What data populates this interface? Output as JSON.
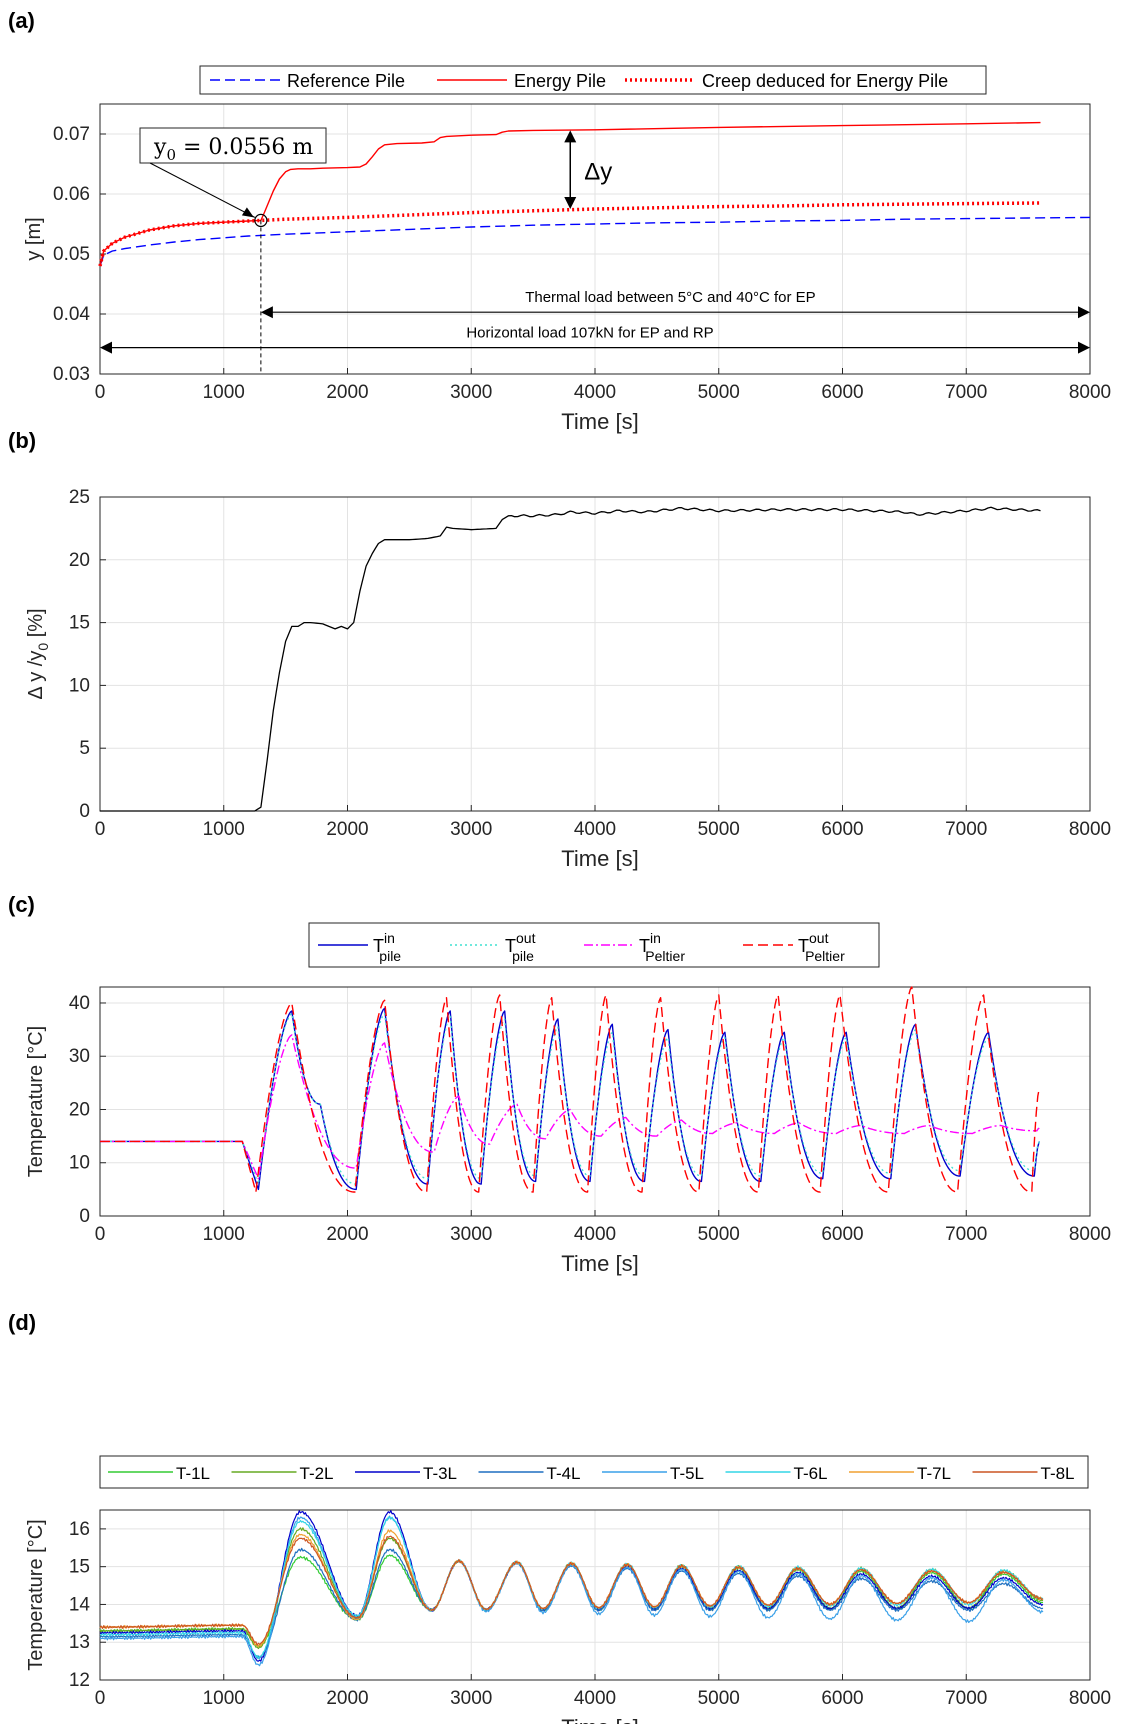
{
  "chart_data": [
    {
      "panel_label": "(a)",
      "type": "line",
      "xlabel": "Time [s]",
      "ylabel": "y [m]",
      "xlim": [
        0,
        8000
      ],
      "ylim": [
        0.03,
        0.075
      ],
      "xticks": [
        0,
        1000,
        2000,
        3000,
        4000,
        5000,
        6000,
        7000,
        8000
      ],
      "yticks": [
        0.03,
        0.04,
        0.05,
        0.06,
        0.07
      ],
      "ytick_labels": [
        "0.03",
        "0.04",
        "0.05",
        "0.06",
        "0.07"
      ],
      "grid": true,
      "legend": "top-outside",
      "series": [
        {
          "name": "Reference Pile",
          "color": "#0000ff",
          "style": "dashed",
          "x": [
            0,
            30,
            100,
            200,
            400,
            600,
            800,
            1000,
            1200,
            1300,
            1500,
            2000,
            2500,
            3000,
            3500,
            4000,
            4500,
            5000,
            5500,
            6000,
            6500,
            7000,
            7500,
            8000
          ],
          "y": [
            0.048,
            0.0498,
            0.0505,
            0.0509,
            0.0515,
            0.052,
            0.0524,
            0.0527,
            0.053,
            0.0531,
            0.0533,
            0.0537,
            0.0541,
            0.0545,
            0.0548,
            0.055,
            0.0552,
            0.0553,
            0.0555,
            0.0556,
            0.0558,
            0.0559,
            0.056,
            0.0561
          ]
        },
        {
          "name": "Energy Pile",
          "color": "#ff0000",
          "style": "solid",
          "x": [
            0,
            30,
            100,
            200,
            400,
            600,
            800,
            1000,
            1200,
            1300,
            1330,
            1400,
            1450,
            1500,
            1540,
            1600,
            1700,
            1800,
            2000,
            2100,
            2150,
            2200,
            2250,
            2300,
            2400,
            2600,
            2700,
            2750,
            2800,
            2900,
            3000,
            3200,
            3250,
            3300,
            3500,
            4000,
            5000,
            6000,
            7000,
            7600
          ],
          "y": [
            0.048,
            0.0505,
            0.0518,
            0.0528,
            0.054,
            0.0547,
            0.0551,
            0.0553,
            0.0555,
            0.0556,
            0.057,
            0.0605,
            0.0625,
            0.0637,
            0.0641,
            0.0642,
            0.0642,
            0.0643,
            0.0644,
            0.0645,
            0.065,
            0.0662,
            0.0675,
            0.0682,
            0.0684,
            0.0685,
            0.0687,
            0.0694,
            0.0696,
            0.0697,
            0.0698,
            0.0699,
            0.0703,
            0.0705,
            0.0706,
            0.0707,
            0.0711,
            0.0714,
            0.0717,
            0.0719
          ]
        },
        {
          "name": "Creep deduced for Energy Pile",
          "color": "#ff0000",
          "style": "dotted",
          "x": [
            0,
            30,
            100,
            200,
            400,
            600,
            800,
            1000,
            1200,
            1300,
            1500,
            2000,
            2500,
            3000,
            3500,
            4000,
            4500,
            5000,
            5500,
            6000,
            6500,
            7000,
            7600
          ],
          "y": [
            0.048,
            0.0505,
            0.0518,
            0.0528,
            0.054,
            0.0547,
            0.0551,
            0.0553,
            0.0555,
            0.0556,
            0.0558,
            0.0561,
            0.0565,
            0.0569,
            0.0572,
            0.0575,
            0.0577,
            0.0579,
            0.058,
            0.0582,
            0.0583,
            0.0584,
            0.0585
          ]
        }
      ],
      "annotations": {
        "y0_label": "y",
        "y0_sub": "0",
        "y0_value": " = 0.0556 m",
        "y0_point": {
          "x": 1300,
          "y": 0.0556
        },
        "delta_label": "Δy",
        "delta_x": 3800,
        "delta_range": [
          0.0575,
          0.0706
        ],
        "thermal_text": "Thermal load between 5°C and 40°C for EP",
        "thermal_range": [
          1300,
          8000
        ],
        "thermal_y": 0.0403,
        "horizontal_text": "Horizontal load 107kN for EP and RP",
        "horizontal_range": [
          0,
          8000
        ],
        "horizontal_y": 0.0344,
        "dashed_marker_x": 1300
      }
    },
    {
      "panel_label": "(b)",
      "type": "line",
      "xlabel": "Time [s]",
      "ylabel": "Δ y /y",
      "ylabel_sub": "0",
      "ylabel_unit": "  [%]",
      "xlim": [
        0,
        8000
      ],
      "ylim": [
        0,
        25
      ],
      "xticks": [
        0,
        1000,
        2000,
        3000,
        4000,
        5000,
        6000,
        7000,
        8000
      ],
      "yticks": [
        0,
        5,
        10,
        15,
        20,
        25
      ],
      "ytick_labels": [
        "0",
        "5",
        "10",
        "15",
        "20",
        "25"
      ],
      "grid": true,
      "series": [
        {
          "color": "#000000",
          "style": "solid",
          "x": [
            0,
            1250,
            1300,
            1350,
            1400,
            1450,
            1500,
            1550,
            1600,
            1650,
            1700,
            1800,
            1900,
            1950,
            2000,
            2050,
            2100,
            2150,
            2200,
            2250,
            2300,
            2500,
            2650,
            2750,
            2800,
            2850,
            3000,
            3200,
            3250,
            3300,
            3500,
            3700,
            3800,
            4000,
            4200,
            4400,
            4500,
            4700,
            5000,
            5500,
            6000,
            6500,
            6600,
            7000,
            7200,
            7600
          ],
          "y": [
            0,
            0,
            0.3,
            4,
            8,
            11,
            13.5,
            14.7,
            14.7,
            15,
            15,
            14.9,
            14.5,
            14.7,
            14.5,
            15,
            17.5,
            19.5,
            20.5,
            21.3,
            21.6,
            21.6,
            21.7,
            21.9,
            22.6,
            22.5,
            22.4,
            22.5,
            23.2,
            23.5,
            23.5,
            23.6,
            23.8,
            23.7,
            23.9,
            23.8,
            23.9,
            24.1,
            23.9,
            24,
            24,
            23.8,
            23.6,
            23.9,
            24.1,
            23.9
          ]
        }
      ]
    },
    {
      "panel_label": "(c)",
      "type": "line",
      "xlabel": "Time [s]",
      "ylabel": "Temperature [°C]",
      "xlim": [
        0,
        8000
      ],
      "ylim": [
        0,
        43
      ],
      "xticks": [
        0,
        1000,
        2000,
        3000,
        4000,
        5000,
        6000,
        7000,
        8000
      ],
      "yticks": [
        0,
        10,
        20,
        30,
        40
      ],
      "ytick_labels": [
        "0",
        "10",
        "20",
        "30",
        "40"
      ],
      "grid": true,
      "legend": "top-outside",
      "series": [
        {
          "name": "T",
          "sup": "in",
          "sub": "pile",
          "color": "#0000cd",
          "style": "solid",
          "peaks_x": [
            1550,
            2300,
            2830,
            3270,
            3700,
            4140,
            4590,
            5050,
            5530,
            6030,
            6590,
            7180
          ],
          "peaks_y": [
            38.5,
            39,
            38.5,
            38.5,
            37,
            36,
            35,
            34.5,
            34.5,
            34.5,
            36,
            34.5
          ],
          "troughs_x": [
            1280,
            2070,
            2650,
            3080,
            3520,
            3960,
            4400,
            4860,
            5340,
            5840,
            6390,
            6950,
            7550
          ],
          "troughs_y": [
            5,
            5,
            6,
            6,
            6.5,
            6.5,
            6.5,
            6.5,
            6.5,
            7,
            7,
            7.5,
            7.5
          ]
        },
        {
          "name": "T",
          "sup": "out",
          "sub": "pile",
          "color": "#40e0d0",
          "style": "dotted",
          "peaks_x": [
            1550,
            2300,
            2830,
            3270,
            3700,
            4140,
            4590,
            5050,
            5530,
            6030,
            6590,
            7180
          ],
          "peaks_y": [
            38,
            38,
            37.5,
            37,
            35.5,
            34.5,
            33.5,
            33.5,
            33.5,
            33.5,
            35,
            33.5
          ],
          "troughs_x": [
            1280,
            2070,
            2650,
            3080,
            3520,
            3960,
            4400,
            4860,
            5340,
            5840,
            6390,
            6950,
            7550
          ],
          "troughs_y": [
            6,
            6,
            7,
            7,
            7.5,
            7.5,
            7.5,
            7.5,
            7.5,
            8,
            8,
            8.5,
            8.5
          ]
        },
        {
          "name": "T",
          "sup": "in",
          "sub": "Peltier",
          "color": "#ff00ff",
          "style": "dashdot",
          "peaks_x": [
            1550,
            2300,
            2900,
            3370,
            3800,
            4250,
            4700,
            5150,
            5650,
            6150,
            6700,
            7280
          ],
          "peaks_y": [
            34,
            32.5,
            22.5,
            21,
            20,
            18.5,
            18,
            17.5,
            17.5,
            17,
            17,
            17
          ],
          "troughs_x": [
            1280,
            2070,
            2700,
            3150,
            3600,
            4050,
            4500,
            4950,
            5450,
            5950,
            6500,
            7050,
            7570
          ],
          "troughs_y": [
            7,
            9,
            12,
            13.5,
            14.5,
            15,
            15,
            15.5,
            15.5,
            15.5,
            15.5,
            15.5,
            16
          ]
        },
        {
          "name": "T",
          "sup": "out",
          "sub": "Peltier",
          "color": "#ff0000",
          "style": "dashed",
          "peaks_x": [
            1550,
            2300,
            2800,
            3230,
            3650,
            4090,
            4530,
            5000,
            5480,
            5980,
            6560,
            7140
          ],
          "peaks_y": [
            40,
            40.5,
            41,
            41.5,
            41,
            41.5,
            41,
            41.5,
            41.5,
            41.5,
            43,
            41.5
          ],
          "troughs_x": [
            1260,
            2060,
            2640,
            3060,
            3500,
            3940,
            4380,
            4840,
            5320,
            5820,
            6370,
            6930,
            7530
          ],
          "troughs_y": [
            4.5,
            4.5,
            4.5,
            4.5,
            4.5,
            4.5,
            4.5,
            4.5,
            4.5,
            4.5,
            4.5,
            4.5,
            4.5
          ]
        }
      ]
    },
    {
      "panel_label": "(d)",
      "type": "line",
      "xlabel": "Time [s]",
      "ylabel": "Temperature [°C]",
      "xlim": [
        0,
        8000
      ],
      "ylim": [
        12,
        16.5
      ],
      "xticks": [
        0,
        1000,
        2000,
        3000,
        4000,
        5000,
        6000,
        7000,
        8000
      ],
      "yticks": [
        12,
        13,
        14,
        15,
        16
      ],
      "ytick_labels": [
        "12",
        "13",
        "14",
        "15",
        "16"
      ],
      "grid": true,
      "legend": "top-outside",
      "series": [
        {
          "name": "T-1L",
          "color": "#33cc33",
          "base": 13.3,
          "dip": 12.9,
          "p1": 15.25,
          "p2": 15.3,
          "amp_end": 0.45,
          "mean_end": 14.35
        },
        {
          "name": "T-2L",
          "color": "#66aa22",
          "base": 13.3,
          "dip": 12.85,
          "p1": 16.0,
          "p2": 15.75,
          "amp_end": 0.5,
          "mean_end": 14.4
        },
        {
          "name": "T-3L",
          "color": "#0000cc",
          "base": 13.25,
          "dip": 12.5,
          "p1": 16.45,
          "p2": 16.45,
          "amp_end": 0.4,
          "mean_end": 14.3
        },
        {
          "name": "T-4L",
          "color": "#1f6fc0",
          "base": 13.15,
          "dip": 12.6,
          "p1": 15.45,
          "p2": 15.45,
          "amp_end": 0.35,
          "mean_end": 14.2
        },
        {
          "name": "T-5L",
          "color": "#3aa0e8",
          "base": 13.1,
          "dip": 12.4,
          "p1": 16.3,
          "p2": 16.3,
          "amp_end": 0.55,
          "mean_end": 14.1
        },
        {
          "name": "T-6L",
          "color": "#33d6e6",
          "base": 13.2,
          "dip": 12.6,
          "p1": 16.2,
          "p2": 16.3,
          "amp_end": 0.45,
          "mean_end": 14.45
        },
        {
          "name": "T-7L",
          "color": "#f0a030",
          "base": 13.4,
          "dip": 12.9,
          "p1": 15.85,
          "p2": 15.95,
          "amp_end": 0.4,
          "mean_end": 14.45
        },
        {
          "name": "T-8L",
          "color": "#cc5522",
          "base": 13.4,
          "dip": 12.95,
          "p1": 15.75,
          "p2": 15.8,
          "amp_end": 0.4,
          "mean_end": 14.45
        }
      ],
      "peaks_x": [
        1620,
        2340,
        2900,
        3370,
        3810,
        4260,
        4700,
        5160,
        5640,
        6150,
        6720,
        7300
      ],
      "troughs_x": [
        1280,
        2080,
        2680,
        3120,
        3580,
        4030,
        4480,
        4930,
        5400,
        5900,
        6440,
        7020
      ]
    }
  ]
}
